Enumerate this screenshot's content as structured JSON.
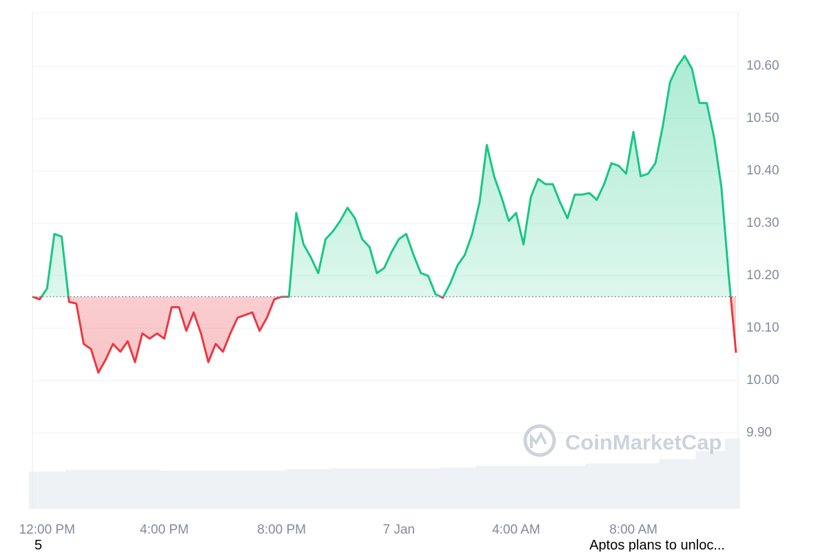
{
  "chart_data": {
    "type": "line",
    "x": [
      null,
      null,
      "12:00 PM",
      null,
      null,
      null,
      null,
      null,
      null,
      null,
      null,
      null,
      null,
      null,
      null,
      null,
      null,
      null,
      "4:00 PM",
      null,
      null,
      null,
      null,
      null,
      null,
      null,
      null,
      null,
      null,
      null,
      null,
      null,
      null,
      null,
      "8:00 PM",
      null,
      null,
      null,
      null,
      null,
      null,
      null,
      null,
      null,
      null,
      null,
      null,
      null,
      null,
      null,
      "7 Jan",
      null,
      null,
      null,
      null,
      null,
      null,
      null,
      null,
      null,
      null,
      null,
      null,
      null,
      null,
      null,
      "4:00 AM",
      null,
      null,
      null,
      null,
      null,
      null,
      null,
      null,
      null,
      null,
      null,
      null,
      null,
      null,
      null,
      "8:00 AM",
      null,
      null,
      null,
      null,
      null,
      null,
      null,
      null,
      null,
      null,
      null,
      null,
      null,
      null
    ],
    "series": [
      {
        "name": "Price",
        "up_color": "#16c784",
        "down_color": "#ea3943",
        "values": [
          10.16,
          10.155,
          10.176,
          10.28,
          10.275,
          10.15,
          10.147,
          10.07,
          10.06,
          10.015,
          10.04,
          10.07,
          10.055,
          10.075,
          10.035,
          10.09,
          10.08,
          10.09,
          10.08,
          10.14,
          10.14,
          10.095,
          10.13,
          10.09,
          10.035,
          10.07,
          10.055,
          10.09,
          10.12,
          10.125,
          10.13,
          10.095,
          10.12,
          10.155,
          10.16,
          10.16,
          10.32,
          10.26,
          10.235,
          10.205,
          10.27,
          10.285,
          10.305,
          10.33,
          10.31,
          10.27,
          10.255,
          10.205,
          10.215,
          10.245,
          10.27,
          10.28,
          10.24,
          10.205,
          10.2,
          10.165,
          10.158,
          10.185,
          10.22,
          10.24,
          10.28,
          10.34,
          10.45,
          10.39,
          10.35,
          10.305,
          10.32,
          10.26,
          10.35,
          10.385,
          10.375,
          10.375,
          10.34,
          10.31,
          10.355,
          10.355,
          10.358,
          10.345,
          10.375,
          10.415,
          10.41,
          10.395,
          10.475,
          10.39,
          10.395,
          10.415,
          10.485,
          10.57,
          10.6,
          10.62,
          10.595,
          10.53,
          10.53,
          10.465,
          10.37,
          10.2,
          10.053
        ]
      },
      {
        "name": "Volume",
        "color": "#eff2f5",
        "values": [
          45,
          45,
          45,
          45,
          45,
          47,
          47,
          47,
          47,
          47,
          47,
          47,
          47,
          47,
          47,
          47,
          47,
          47,
          46,
          46,
          46,
          46,
          46,
          46,
          46,
          46,
          46,
          46,
          46,
          46,
          46,
          46,
          46,
          46,
          46,
          48,
          48,
          48,
          48,
          48,
          48,
          49,
          49,
          49,
          49,
          49,
          49,
          49,
          49,
          49,
          49,
          49,
          49,
          49,
          49,
          49,
          50,
          50,
          50,
          50,
          50,
          52,
          52,
          52,
          52,
          52,
          52,
          52,
          52,
          52,
          52,
          52,
          52,
          52,
          52,
          52,
          55,
          55,
          55,
          55,
          55,
          55,
          55,
          55,
          55,
          55,
          60,
          60,
          60,
          60,
          60,
          70,
          70,
          70,
          70,
          85,
          85
        ]
      }
    ],
    "reference_value": 10.16,
    "ylim": [
      9.755,
      10.703
    ],
    "volume_lim": [
      0,
      600
    ],
    "yticks": [
      {
        "value": 9.9,
        "label": "9.90"
      },
      {
        "value": 10.0,
        "label": "10.00"
      },
      {
        "value": 10.1,
        "label": "10.10"
      },
      {
        "value": 10.2,
        "label": "10.20"
      },
      {
        "value": 10.3,
        "label": "10.30"
      },
      {
        "value": 10.4,
        "label": "10.40"
      },
      {
        "value": 10.5,
        "label": "10.50"
      },
      {
        "value": 10.6,
        "label": "10.60"
      }
    ],
    "grid": true,
    "watermark": "CoinMarketCap"
  },
  "footer": {
    "left": "5",
    "right": "Aptos plans to unloc..."
  }
}
